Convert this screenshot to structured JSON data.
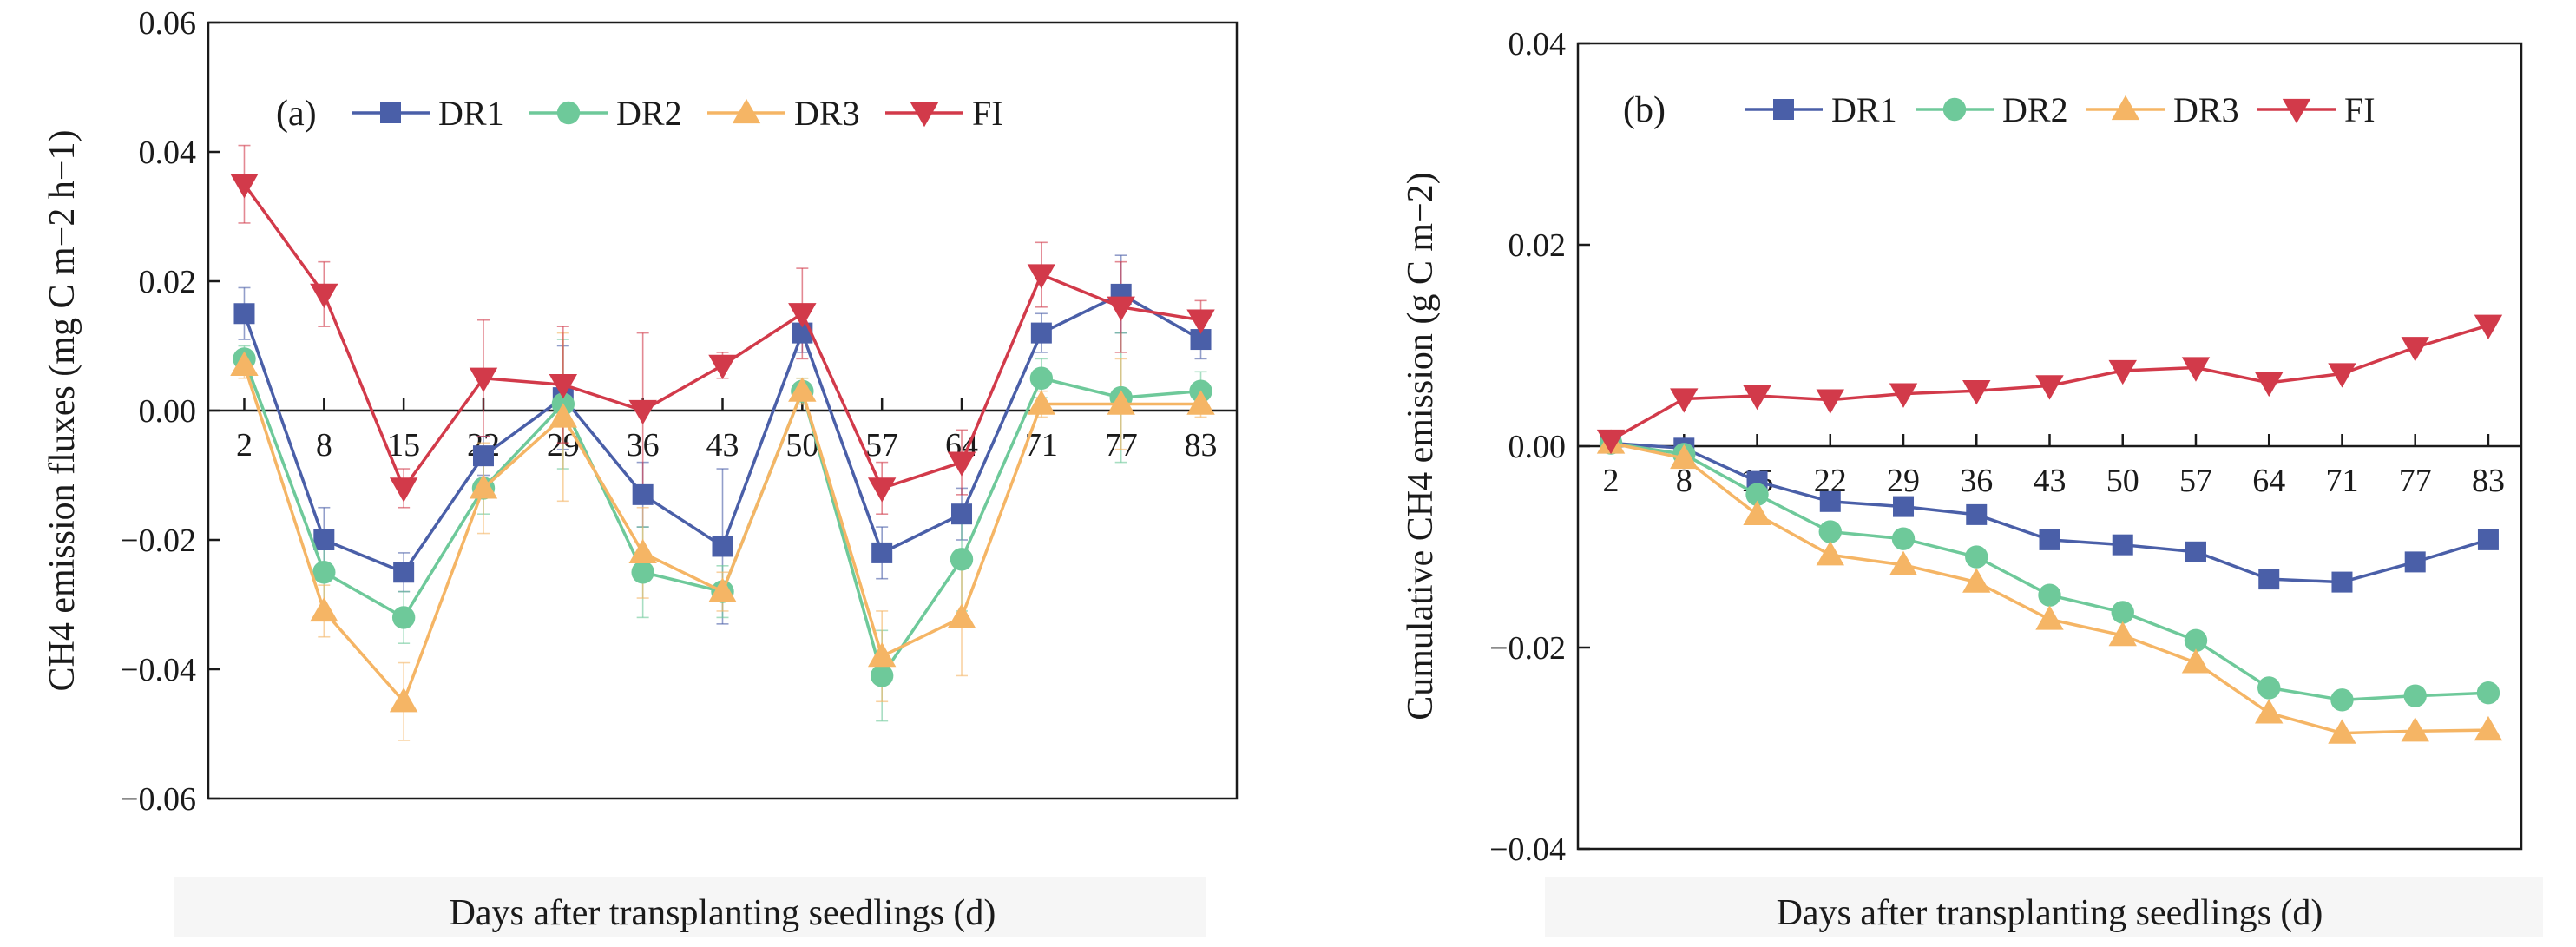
{
  "colors": {
    "DR1": "#4a5fa8",
    "DR2": "#6ec99a",
    "DR3": "#f5b565",
    "FI": "#d23a4a",
    "axis": "#1a1a1a"
  },
  "chart_data": [
    {
      "id": "panel-a",
      "type": "line",
      "panel_label": "(a)",
      "title": "",
      "xlabel": "Days after transplanting seedlings (d)",
      "ylabel": "CH4 emission fluxes (mg C m−2 h−1)",
      "ylim": [
        -0.06,
        0.06
      ],
      "yticks": [
        -0.06,
        -0.04,
        -0.02,
        0.0,
        0.02,
        0.04,
        0.06
      ],
      "ytick_labels": [
        "−0.06",
        "−0.04",
        "−0.02",
        "0.00",
        "0.02",
        "0.04",
        "0.06"
      ],
      "x": [
        2,
        8,
        15,
        22,
        29,
        36,
        43,
        50,
        57,
        64,
        71,
        77,
        83
      ],
      "legend_position": "top",
      "series": [
        {
          "name": "DR1",
          "marker": "square",
          "values": [
            0.015,
            -0.02,
            -0.025,
            -0.007,
            0.002,
            -0.013,
            -0.021,
            0.012,
            -0.022,
            -0.016,
            0.012,
            0.018,
            0.011
          ],
          "errors": [
            0.004,
            0.005,
            0.003,
            0.003,
            0.008,
            0.005,
            0.012,
            0.003,
            0.004,
            0.004,
            0.003,
            0.006,
            0.003
          ]
        },
        {
          "name": "DR2",
          "marker": "circle",
          "values": [
            0.008,
            -0.025,
            -0.032,
            -0.012,
            0.001,
            -0.025,
            -0.028,
            0.003,
            -0.041,
            -0.023,
            0.005,
            0.002,
            0.003
          ],
          "errors": [
            0.002,
            0.006,
            0.004,
            0.004,
            0.01,
            0.007,
            0.004,
            0.002,
            0.007,
            0.008,
            0.003,
            0.01,
            0.003
          ]
        },
        {
          "name": "DR3",
          "marker": "triangle-up",
          "values": [
            0.007,
            -0.031,
            -0.045,
            -0.012,
            -0.001,
            -0.022,
            -0.028,
            0.003,
            -0.038,
            -0.032,
            0.001,
            0.001,
            0.001
          ],
          "errors": [
            0.002,
            0.004,
            0.006,
            0.007,
            0.013,
            0.007,
            0.003,
            0.002,
            0.007,
            0.009,
            0.002,
            0.007,
            0.002
          ]
        },
        {
          "name": "FI",
          "marker": "triangle-down",
          "values": [
            0.035,
            0.018,
            -0.012,
            0.005,
            0.004,
            0.0,
            0.007,
            0.015,
            -0.012,
            -0.008,
            0.021,
            0.016,
            0.014
          ],
          "errors": [
            0.006,
            0.005,
            0.003,
            0.009,
            0.009,
            0.012,
            0.002,
            0.007,
            0.004,
            0.005,
            0.005,
            0.007,
            0.003
          ]
        }
      ]
    },
    {
      "id": "panel-b",
      "type": "line",
      "panel_label": "(b)",
      "title": "",
      "xlabel": "Days after transplanting seedlings (d)",
      "ylabel": "Cumulative CH4 emission (g C m−2)",
      "ylim": [
        -0.04,
        0.04
      ],
      "yticks": [
        -0.04,
        -0.02,
        0.0,
        0.02,
        0.04
      ],
      "ytick_labels": [
        "−0.04",
        "−0.02",
        "0.00",
        "0.02",
        "0.04"
      ],
      "x": [
        2,
        8,
        15,
        22,
        29,
        36,
        43,
        50,
        57,
        64,
        71,
        77,
        83
      ],
      "legend_position": "top",
      "series": [
        {
          "name": "DR1",
          "marker": "square",
          "values": [
            0.0003,
            -0.0002,
            -0.0035,
            -0.0055,
            -0.006,
            -0.0068,
            -0.0093,
            -0.0098,
            -0.0105,
            -0.0132,
            -0.0135,
            -0.0115,
            -0.0093
          ]
        },
        {
          "name": "DR2",
          "marker": "circle",
          "values": [
            0.0003,
            -0.0008,
            -0.0048,
            -0.0085,
            -0.0092,
            -0.011,
            -0.0148,
            -0.0165,
            -0.0193,
            -0.024,
            -0.0252,
            -0.0248,
            -0.0245
          ]
        },
        {
          "name": "DR3",
          "marker": "triangle-up",
          "values": [
            0.0003,
            -0.0012,
            -0.0068,
            -0.0108,
            -0.0118,
            -0.0135,
            -0.0172,
            -0.0188,
            -0.0215,
            -0.0265,
            -0.0285,
            -0.0283,
            -0.0282
          ]
        },
        {
          "name": "FI",
          "marker": "triangle-down",
          "values": [
            0.0006,
            0.0047,
            0.005,
            0.0046,
            0.0052,
            0.0055,
            0.006,
            0.0075,
            0.0078,
            0.0063,
            0.0072,
            0.0098,
            0.012
          ]
        }
      ]
    }
  ]
}
